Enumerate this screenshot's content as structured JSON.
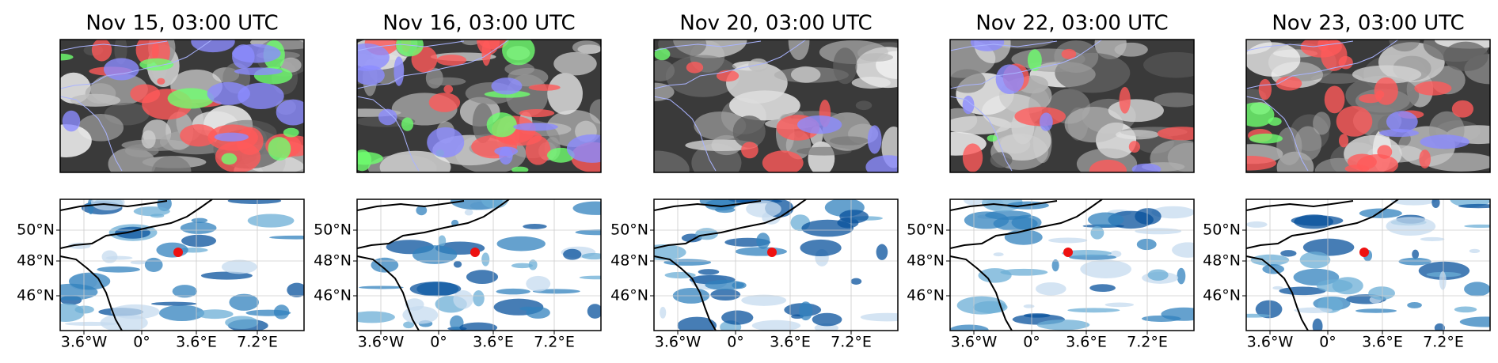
{
  "panels": [
    {
      "title": "Nov 15, 03:00 UTC"
    },
    {
      "title": "Nov 16, 03:00 UTC"
    },
    {
      "title": "Nov 20, 03:00 UTC"
    },
    {
      "title": "Nov 22, 03:00 UTC"
    },
    {
      "title": "Nov 23, 03:00 UTC"
    }
  ],
  "lat_ticks": [
    "50°N",
    "48°N",
    "46°N"
  ],
  "lon_ticks": [
    "3.6°W",
    "0°",
    "3.6°E",
    "7.2°E"
  ]
}
